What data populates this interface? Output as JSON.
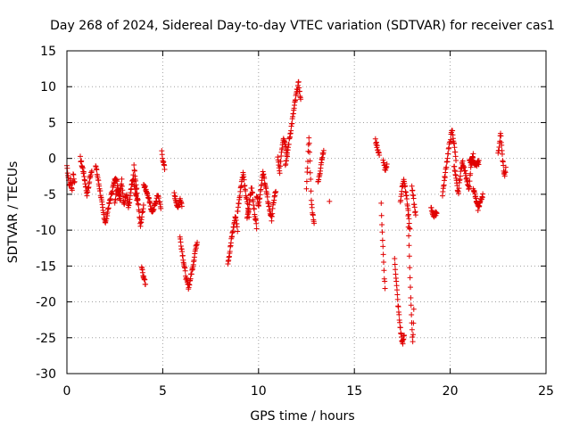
{
  "chart_data": {
    "type": "scatter",
    "title": "Day 268 of 2024, Sidereal Day-to-day VTEC variation (SDTVAR) for receiver cas1",
    "xlabel": "GPS time / hours",
    "ylabel": "SDTVAR / TECUs",
    "xlim": [
      0,
      25
    ],
    "ylim": [
      -30,
      15
    ],
    "xticks": [
      0,
      5,
      10,
      15,
      20,
      25
    ],
    "yticks": [
      -30,
      -25,
      -20,
      -15,
      -10,
      -5,
      0,
      5,
      10,
      15
    ],
    "grid": true,
    "marker": "+",
    "color": "#e00000",
    "segments": [
      {
        "x0": 0.0,
        "x1": 0.4,
        "y": [
          -1,
          -2.5,
          -4,
          -3,
          -4.5,
          -2,
          -3.5
        ]
      },
      {
        "x0": 0.7,
        "x1": 1.3,
        "y": [
          0,
          -1,
          -2,
          -3.5,
          -5,
          -4,
          -2.5,
          -1.5
        ]
      },
      {
        "x0": 1.5,
        "x1": 2.8,
        "y": [
          -1,
          -3,
          -5,
          -7.5,
          -9,
          -7,
          -5.5,
          -4,
          -2.5,
          -4,
          -6
        ]
      },
      {
        "x0": 2.5,
        "x1": 3.7,
        "y": [
          -6,
          -4,
          -5.5,
          -3,
          -6.5,
          -5,
          -7,
          -4.5,
          -2.5,
          -5,
          -6
        ]
      },
      {
        "x0": 3.5,
        "x1": 4.0,
        "y": [
          -1,
          -3,
          -5,
          -7,
          -9.5,
          -8,
          -6.5
        ]
      },
      {
        "x0": 3.9,
        "x1": 4.1,
        "y": [
          -15,
          -16.5,
          -17.5
        ]
      },
      {
        "x0": 4.0,
        "x1": 4.9,
        "y": [
          -3.5,
          -4.5,
          -6,
          -7.5,
          -6.5,
          -5,
          -7
        ]
      },
      {
        "x0": 4.95,
        "x1": 5.1,
        "y": [
          1,
          -0.5,
          -1.5
        ]
      },
      {
        "x0": 5.6,
        "x1": 6.0,
        "y": [
          -5,
          -6,
          -7,
          -5.5,
          -6.5
        ]
      },
      {
        "x0": 5.9,
        "x1": 6.8,
        "y": [
          -11,
          -13,
          -15,
          -17,
          -18,
          -16.5,
          -15,
          -13,
          -11.5
        ]
      },
      {
        "x0": 8.4,
        "x1": 8.9,
        "y": [
          -14.5,
          -13,
          -11,
          -9.5,
          -8,
          -10
        ]
      },
      {
        "x0": 8.9,
        "x1": 9.5,
        "y": [
          -7.5,
          -5.5,
          -3.5,
          -2,
          -4.5,
          -6,
          -8
        ]
      },
      {
        "x0": 9.4,
        "x1": 9.9,
        "y": [
          -8.5,
          -7,
          -5,
          -4,
          -6.5,
          -8,
          -9.5
        ]
      },
      {
        "x0": 9.9,
        "x1": 10.9,
        "y": [
          -5,
          -6.5,
          -4,
          -2,
          -3.5,
          -5.5,
          -7,
          -8.5,
          -6,
          -4.5
        ]
      },
      {
        "x0": 11.0,
        "x1": 11.5,
        "y": [
          0,
          -2,
          1,
          3,
          2,
          0.5
        ]
      },
      {
        "x0": 11.4,
        "x1": 12.2,
        "y": [
          -1,
          1,
          3,
          5,
          7,
          9,
          10.5,
          8
        ]
      },
      {
        "x0": 12.5,
        "x1": 12.9,
        "y": [
          -4,
          3,
          -6.5,
          -9
        ]
      },
      {
        "x0": 13.1,
        "x1": 13.4,
        "y": [
          -3.5,
          -2,
          0,
          1
        ]
      },
      {
        "x0": 13.7,
        "x1": 13.8,
        "y": [
          -6
        ]
      },
      {
        "x0": 16.1,
        "x1": 16.3,
        "y": [
          2.5,
          1.5,
          0.5
        ]
      },
      {
        "x0": 16.4,
        "x1": 16.6,
        "y": [
          -6.5,
          -10,
          -13,
          -16,
          -18
        ]
      },
      {
        "x0": 16.5,
        "x1": 16.7,
        "y": [
          -0.5,
          -1.5,
          -1
        ]
      },
      {
        "x0": 17.1,
        "x1": 17.6,
        "y": [
          -14,
          -17,
          -20,
          -22.5,
          -24.5,
          -26,
          -24.5
        ]
      },
      {
        "x0": 17.4,
        "x1": 17.9,
        "y": [
          -6,
          -4,
          -3,
          -5,
          -7,
          -10
        ]
      },
      {
        "x0": 17.8,
        "x1": 18.1,
        "y": [
          -8,
          -12,
          -16,
          -20,
          -23,
          -26,
          -21
        ]
      },
      {
        "x0": 18.0,
        "x1": 18.2,
        "y": [
          -4,
          -6,
          -8
        ]
      },
      {
        "x0": 19.0,
        "x1": 19.3,
        "y": [
          -7,
          -8,
          -7.5
        ]
      },
      {
        "x0": 19.6,
        "x1": 20.3,
        "y": [
          -5,
          -3,
          -1,
          1,
          2.5,
          4,
          2,
          0
        ]
      },
      {
        "x0": 20.2,
        "x1": 21.2,
        "y": [
          -1,
          -3,
          -5,
          -2,
          -0.5,
          -1.5,
          -3,
          -4.5,
          -1,
          0.5
        ]
      },
      {
        "x0": 21.2,
        "x1": 21.7,
        "y": [
          -4,
          -5.5,
          -7,
          -6,
          -5
        ]
      },
      {
        "x0": 21.0,
        "x1": 21.5,
        "y": [
          -0.5,
          0,
          -1,
          -0.5
        ]
      },
      {
        "x0": 22.5,
        "x1": 22.9,
        "y": [
          0.5,
          2,
          3.5,
          1,
          -1,
          -2.5,
          -1.5
        ]
      }
    ]
  }
}
